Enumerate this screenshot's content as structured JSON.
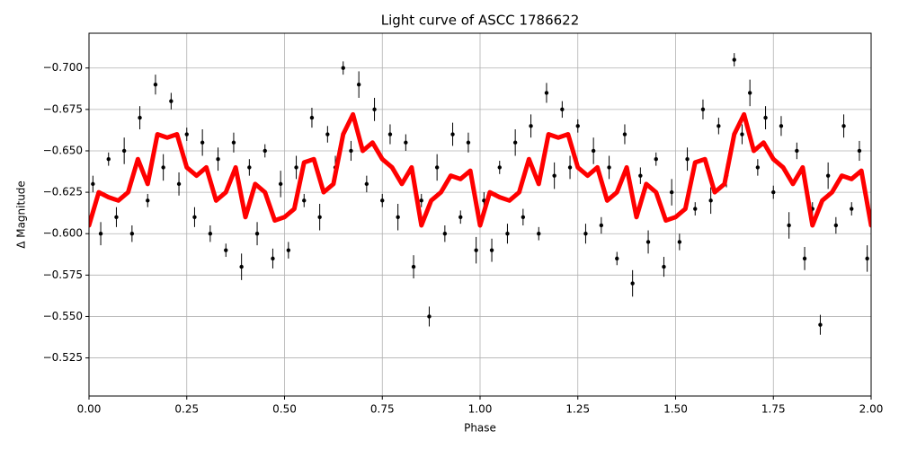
{
  "chart_data": {
    "type": "scatter",
    "title": "Light curve of ASCC 1786622",
    "x_label": "Phase",
    "y_label": "Δ Magnitude",
    "xlim": [
      0,
      2
    ],
    "ylim": [
      -0.502,
      -0.721
    ],
    "grid": true,
    "xticks": [
      {
        "value": 0,
        "label": "0.00"
      },
      {
        "value": 0.25,
        "label": "0.25"
      },
      {
        "value": 0.5,
        "label": "0.50"
      },
      {
        "value": 0.75,
        "label": "0.75"
      },
      {
        "value": 1,
        "label": "1.00"
      },
      {
        "value": 1.25,
        "label": "1.25"
      },
      {
        "value": 1.5,
        "label": "1.50"
      },
      {
        "value": 1.75,
        "label": "1.75"
      },
      {
        "value": 2,
        "label": "2.00"
      }
    ],
    "yticks": [
      {
        "value": -0.7,
        "label": "−0.700"
      },
      {
        "value": -0.675,
        "label": "−0.675"
      },
      {
        "value": -0.65,
        "label": "−0.650"
      },
      {
        "value": -0.625,
        "label": "−0.625"
      },
      {
        "value": -0.6,
        "label": "−0.600"
      },
      {
        "value": -0.575,
        "label": "−0.575"
      },
      {
        "value": -0.55,
        "label": "−0.550"
      },
      {
        "value": -0.525,
        "label": "−0.525"
      }
    ],
    "series": [
      {
        "type": "errorbar",
        "color": "#000000",
        "x": [
          0.01,
          0.03,
          0.05,
          0.07,
          0.09,
          0.11,
          0.13,
          0.15,
          0.17,
          0.19,
          0.21,
          0.23,
          0.25,
          0.27,
          0.29,
          0.31,
          0.33,
          0.35,
          0.37,
          0.39,
          0.41,
          0.43,
          0.45,
          0.47,
          0.49,
          0.51,
          0.53,
          0.55,
          0.57,
          0.59,
          0.61,
          0.63,
          0.65,
          0.67,
          0.69,
          0.71,
          0.73,
          0.75,
          0.77,
          0.79,
          0.81,
          0.83,
          0.85,
          0.87,
          0.89,
          0.91,
          0.93,
          0.95,
          0.97,
          0.99,
          1.01,
          1.03,
          1.05,
          1.07,
          1.09,
          1.11,
          1.13,
          1.15,
          1.17,
          1.19,
          1.21,
          1.23,
          1.25,
          1.27,
          1.29,
          1.31,
          1.33,
          1.35,
          1.37,
          1.39,
          1.41,
          1.43,
          1.45,
          1.47,
          1.49,
          1.51,
          1.53,
          1.55,
          1.57,
          1.59,
          1.61,
          1.63,
          1.65,
          1.67,
          1.69,
          1.71,
          1.73,
          1.75,
          1.77,
          1.79,
          1.81,
          1.83,
          1.85,
          1.87,
          1.89,
          1.91,
          1.93,
          1.95,
          1.97,
          1.99
        ],
        "values": [
          -0.63,
          -0.6,
          -0.645,
          -0.61,
          -0.65,
          -0.6,
          -0.67,
          -0.62,
          -0.69,
          -0.64,
          -0.68,
          -0.63,
          -0.66,
          -0.61,
          -0.655,
          -0.6,
          -0.645,
          -0.59,
          -0.655,
          -0.58,
          -0.64,
          -0.6,
          -0.65,
          -0.585,
          -0.63,
          -0.59,
          -0.64,
          -0.62,
          -0.67,
          -0.61,
          -0.66,
          -0.64,
          -0.7,
          -0.65,
          -0.69,
          -0.63,
          -0.675,
          -0.62,
          -0.66,
          -0.61,
          -0.655,
          -0.58,
          -0.62,
          -0.55,
          -0.64,
          -0.6,
          -0.66,
          -0.61,
          -0.655,
          -0.59,
          -0.62,
          -0.59,
          -0.64,
          -0.6,
          -0.655,
          -0.61,
          -0.665,
          -0.6,
          -0.685,
          -0.635,
          -0.675,
          -0.64,
          -0.665,
          -0.6,
          -0.65,
          -0.605,
          -0.64,
          -0.585,
          -0.66,
          -0.57,
          -0.635,
          -0.595,
          -0.645,
          -0.58,
          -0.625,
          -0.595,
          -0.645,
          -0.615,
          -0.675,
          -0.62,
          -0.665,
          -0.635,
          -0.705,
          -0.66,
          -0.685,
          -0.64,
          -0.67,
          -0.625,
          -0.665,
          -0.605,
          -0.65,
          -0.585,
          -0.615,
          -0.545,
          -0.635,
          -0.605,
          -0.665,
          -0.615,
          -0.65,
          -0.585
        ],
        "errors": [
          0.005,
          0.007,
          0.004,
          0.006,
          0.008,
          0.005,
          0.007,
          0.004,
          0.006,
          0.008,
          0.005,
          0.007,
          0.004,
          0.006,
          0.008,
          0.005,
          0.007,
          0.004,
          0.006,
          0.008,
          0.005,
          0.007,
          0.004,
          0.006,
          0.008,
          0.005,
          0.007,
          0.004,
          0.006,
          0.008,
          0.005,
          0.007,
          0.004,
          0.006,
          0.008,
          0.005,
          0.007,
          0.004,
          0.006,
          0.008,
          0.005,
          0.007,
          0.004,
          0.006,
          0.008,
          0.005,
          0.007,
          0.004,
          0.006,
          0.008,
          0.005,
          0.007,
          0.004,
          0.006,
          0.008,
          0.005,
          0.007,
          0.004,
          0.006,
          0.008,
          0.005,
          0.007,
          0.004,
          0.006,
          0.008,
          0.005,
          0.007,
          0.004,
          0.006,
          0.008,
          0.005,
          0.007,
          0.004,
          0.006,
          0.008,
          0.005,
          0.007,
          0.004,
          0.006,
          0.008,
          0.005,
          0.007,
          0.004,
          0.006,
          0.008,
          0.005,
          0.007,
          0.004,
          0.006,
          0.008,
          0.005,
          0.007,
          0.004,
          0.006,
          0.008,
          0.005,
          0.007,
          0.004,
          0.006,
          0.008
        ]
      },
      {
        "type": "line",
        "color": "#ff0000",
        "x": [
          0,
          0.025,
          0.05,
          0.075,
          0.1,
          0.125,
          0.15,
          0.175,
          0.2,
          0.225,
          0.25,
          0.275,
          0.3,
          0.325,
          0.35,
          0.375,
          0.4,
          0.425,
          0.45,
          0.475,
          0.5,
          0.525,
          0.55,
          0.575,
          0.6,
          0.625,
          0.65,
          0.675,
          0.7,
          0.725,
          0.75,
          0.775,
          0.8,
          0.825,
          0.85,
          0.875,
          0.9,
          0.925,
          0.95,
          0.975,
          1,
          1.025,
          1.05,
          1.075,
          1.1,
          1.125,
          1.15,
          1.175,
          1.2,
          1.225,
          1.25,
          1.275,
          1.3,
          1.325,
          1.35,
          1.375,
          1.4,
          1.425,
          1.45,
          1.475,
          1.5,
          1.525,
          1.55,
          1.575,
          1.6,
          1.625,
          1.65,
          1.675,
          1.7,
          1.725,
          1.75,
          1.775,
          1.8,
          1.825,
          1.85,
          1.875,
          1.9,
          1.925,
          1.95,
          1.975,
          2
        ],
        "values": [
          -0.605,
          -0.625,
          -0.622,
          -0.62,
          -0.625,
          -0.645,
          -0.63,
          -0.66,
          -0.658,
          -0.66,
          -0.64,
          -0.635,
          -0.64,
          -0.62,
          -0.625,
          -0.64,
          -0.61,
          -0.63,
          -0.625,
          -0.608,
          -0.61,
          -0.615,
          -0.643,
          -0.645,
          -0.625,
          -0.63,
          -0.66,
          -0.672,
          -0.65,
          -0.655,
          -0.645,
          -0.64,
          -0.63,
          -0.64,
          -0.605,
          -0.62,
          -0.625,
          -0.635,
          -0.633,
          -0.638,
          -0.605,
          -0.625,
          -0.622,
          -0.62,
          -0.625,
          -0.645,
          -0.63,
          -0.66,
          -0.658,
          -0.66,
          -0.64,
          -0.635,
          -0.64,
          -0.62,
          -0.625,
          -0.64,
          -0.61,
          -0.63,
          -0.625,
          -0.608,
          -0.61,
          -0.615,
          -0.643,
          -0.645,
          -0.625,
          -0.63,
          -0.66,
          -0.672,
          -0.65,
          -0.655,
          -0.645,
          -0.64,
          -0.63,
          -0.64,
          -0.605,
          -0.62,
          -0.625,
          -0.635,
          -0.633,
          -0.638,
          -0.605
        ]
      }
    ]
  }
}
